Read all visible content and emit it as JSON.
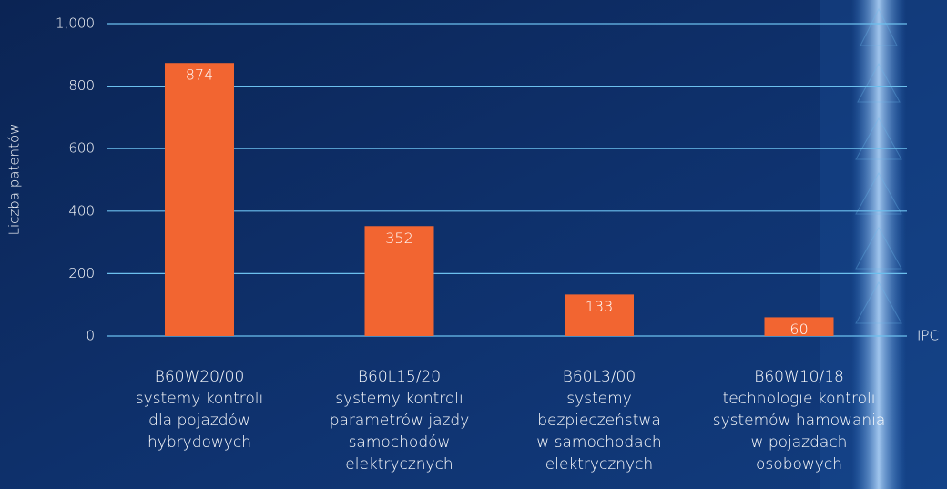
{
  "chart_data": {
    "type": "bar",
    "y_axis_label": "Liczba patentów",
    "x_axis_label": "IPC",
    "categories": [
      [
        "B60W20/00",
        "systemy kontroli",
        "dla pojazdów",
        "hybrydowych"
      ],
      [
        "B60L15/20",
        "systemy kontroli",
        "parametrów jazdy",
        "samochodów",
        "elektrycznych"
      ],
      [
        "B60L3/00",
        "systemy",
        "bezpieczeństwa",
        "w samochodach",
        "elektrycznych"
      ],
      [
        "B60W10/18",
        "technologie kontroli",
        "systemów hamowania",
        "w pojazdach",
        "osobowych"
      ]
    ],
    "values": [
      874,
      352,
      133,
      60
    ],
    "color": "#f26531",
    "ylim": [
      0,
      1000
    ],
    "yticks": [
      0,
      200,
      400,
      600,
      800,
      {
        "value": 1000,
        "label": "1,000"
      }
    ],
    "grid": true
  }
}
